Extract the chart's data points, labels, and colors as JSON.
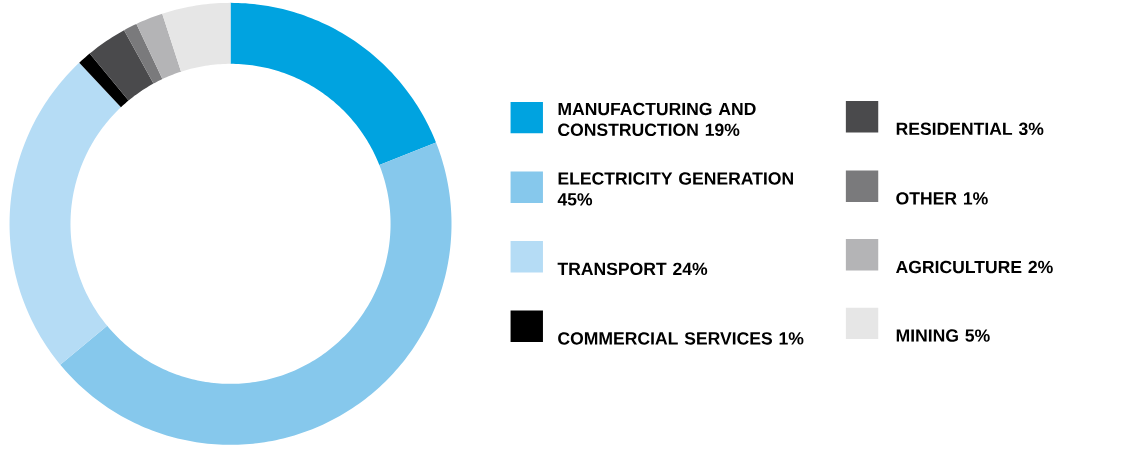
{
  "chart_data": {
    "type": "donut",
    "categories": [
      "MANUFACTURING AND CONSTRUCTION 19%",
      "ELECTRICITY GENERATION 45%",
      "TRANSPORT 24%",
      "COMMERCIAL SERVICES 1%",
      "RESIDENTIAL 3%",
      "OTHER 1%",
      "AGRICULTURE 2%",
      "MINING 5%"
    ],
    "values": [
      19,
      45,
      24,
      1,
      3,
      1,
      2,
      5
    ],
    "colors": [
      "#00a3e0",
      "#86c8ec",
      "#b5dcf5",
      "#000000",
      "#4a4a4c",
      "#7a7a7c",
      "#b4b4b6",
      "#e6e6e6"
    ],
    "legend": "right"
  }
}
